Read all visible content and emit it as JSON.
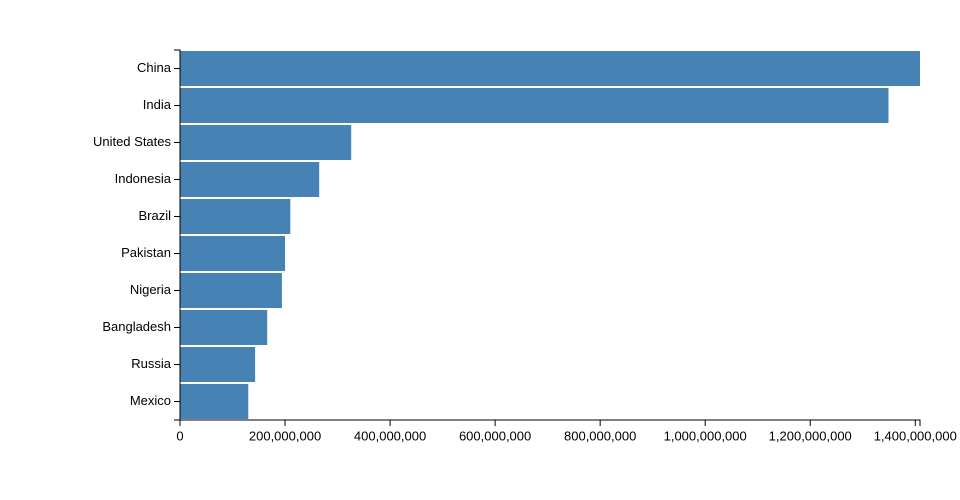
{
  "chart_data": {
    "type": "hbar",
    "categories": [
      "China",
      "India",
      "United States",
      "Indonesia",
      "Brazil",
      "Pakistan",
      "Nigeria",
      "Bangladesh",
      "Russia",
      "Mexico"
    ],
    "values": [
      1409000000,
      1349000000,
      326000000,
      265000000,
      210000000,
      200000000,
      194000000,
      166000000,
      143000000,
      130000000
    ],
    "color": "#4682b4",
    "xlim": [
      0,
      1409000000
    ],
    "xticks": [
      0,
      {
        "value": 200000000,
        "label": "200,000,000"
      },
      {
        "value": 400000000,
        "label": "400,000,000"
      },
      {
        "value": 600000000,
        "label": "600,000,000"
      },
      {
        "value": 800000000,
        "label": "800,000,000"
      },
      {
        "value": 1000000000,
        "label": "1,000,000,000"
      },
      {
        "value": 1200000000,
        "label": "1,200,000,000"
      },
      {
        "value": 1400000000,
        "label": "1,400,000,000"
      }
    ]
  }
}
